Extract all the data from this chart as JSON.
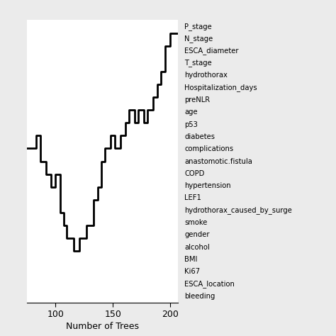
{
  "xlabel": "Number of Trees",
  "xlim": [
    75,
    207
  ],
  "ylim": [
    1,
    23
  ],
  "bg_color": "#ebebeb",
  "plot_bg_color": "#ffffff",
  "line_color": "#000000",
  "line_width": 2.0,
  "x_ticks": [
    100,
    150,
    200
  ],
  "variables": [
    "P_stage",
    "N_stage",
    "ESCA_diameter",
    "T_stage",
    "hydrothorax",
    "Hospitalization_days",
    "preNLR",
    "age",
    "p53",
    "diabetes",
    "complications",
    "anastomotic.fistula",
    "COPD",
    "hypertension",
    "LEF1",
    "hydrothorax_caused_by_surge",
    "smoke",
    "gender",
    "alcohol",
    "BMI",
    "Ki67",
    "ESCA_location",
    "bleeding"
  ],
  "step_x": [
    75,
    83,
    83,
    87,
    87,
    92,
    92,
    96,
    96,
    100,
    100,
    104,
    104,
    107,
    107,
    110,
    110,
    116,
    116,
    121,
    121,
    127,
    127,
    133,
    133,
    137,
    137,
    140,
    140,
    143,
    143,
    148,
    148,
    152,
    152,
    157,
    157,
    161,
    161,
    164,
    164,
    169,
    169,
    172,
    172,
    177,
    177,
    180,
    180,
    185,
    185,
    189,
    189,
    192,
    192,
    196,
    196,
    200,
    200,
    207
  ],
  "step_y": [
    13,
    13,
    14,
    14,
    12,
    12,
    11,
    11,
    10,
    10,
    11,
    11,
    8,
    8,
    7,
    7,
    6,
    6,
    5,
    5,
    6,
    6,
    7,
    7,
    9,
    9,
    10,
    10,
    12,
    12,
    13,
    13,
    14,
    14,
    13,
    13,
    14,
    14,
    15,
    15,
    16,
    16,
    15,
    15,
    16,
    16,
    15,
    15,
    16,
    16,
    17,
    17,
    18,
    18,
    19,
    19,
    21,
    21,
    22,
    22
  ]
}
